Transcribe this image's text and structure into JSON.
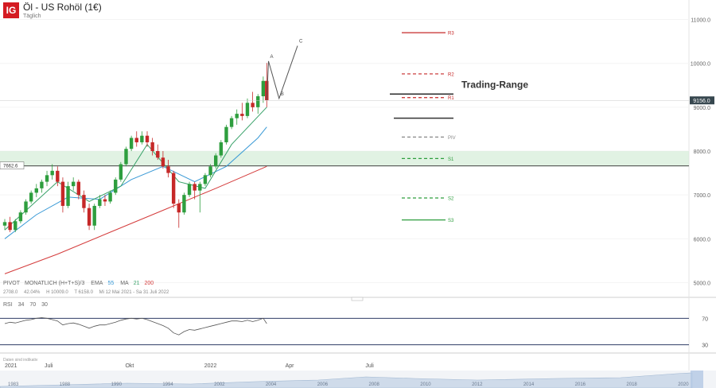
{
  "header": {
    "logo": "IG",
    "title": "Öl - US Rohöl (1€)",
    "subtitle": "Täglich"
  },
  "legend": {
    "pivot": "PIVOT",
    "pivot_params": "MONATLICH (H+T+S)/3",
    "ema_label": "EMA",
    "ema_value": "55",
    "ma_label": "MA",
    "ma_21": "21",
    "ma_200": "200",
    "info_1": "2708.0",
    "info_2": "42.04%",
    "info_3": "H 10009.0",
    "info_4": "T 6158.0",
    "info_5": "Mi 12 Mai 2021 - Sa 31 Juli 2022"
  },
  "rsi": {
    "label": "RSI",
    "period": "34",
    "upper": "70",
    "lower": "30",
    "axis_labels": [
      "70",
      "30"
    ]
  },
  "disclaimer": "Daten sind indikativ",
  "colors": {
    "up": "#2e9e3e",
    "down": "#c62828",
    "ema55": "#3a9ad6",
    "ma21": "#38a169",
    "ma200": "#d43b3b",
    "zone": "#d7eed9",
    "price_tag": "#37474f"
  },
  "chart_data": {
    "type": "candlestick",
    "title": "Öl - US Rohöl (1€)",
    "subtitle": "Täglich",
    "ylim": [
      4700,
      11300
    ],
    "y_ticks": [
      5000,
      6000,
      7000,
      8000,
      9000,
      10000,
      11000
    ],
    "y_tick_labels": [
      "5000.0",
      "6000.0",
      "7000.0",
      "8000.0",
      "9000.0",
      "10000.0",
      "11000.0"
    ],
    "x_labels": [
      {
        "label": "2021",
        "date": "2021-05-12"
      },
      {
        "label": "Juli",
        "date": "2021-07-01"
      },
      {
        "label": "Okt",
        "date": "2021-10-01"
      },
      {
        "label": "2022",
        "date": "2022-01-01"
      },
      {
        "label": "Apr",
        "date": "2022-04-01"
      },
      {
        "label": "Juli",
        "date": "2022-07-01"
      }
    ],
    "x_range": [
      "2021-05-12",
      "2022-07-31"
    ],
    "last_price": 9156.0,
    "last_price_label": "9156.0",
    "horizontal_level": 7662.6,
    "horizontal_level_label": "7662.6",
    "support_zone": [
      7650,
      8000
    ],
    "pivots": [
      {
        "label": "R3",
        "value": 10700,
        "style": "solid",
        "color": "#c62828"
      },
      {
        "label": "R2",
        "value": 9760,
        "style": "dashed",
        "color": "#c62828"
      },
      {
        "label": "R1",
        "value": 9220,
        "style": "dashed",
        "color": "#c62828"
      },
      {
        "label": "PIV",
        "value": 8320,
        "style": "dashed",
        "color": "#888888"
      },
      {
        "label": "S1",
        "value": 7830,
        "style": "dashed",
        "color": "#2e9e3e"
      },
      {
        "label": "S2",
        "value": 6930,
        "style": "dashed",
        "color": "#2e9e3e"
      },
      {
        "label": "S3",
        "value": 6430,
        "style": "solid",
        "color": "#2e9e3e"
      }
    ],
    "trading_range": {
      "label": "Trading-Range",
      "top": 9300,
      "bottom": 8750
    },
    "wave_path": [
      {
        "label": "A",
        "date": "2022-03-08",
        "value": 10050
      },
      {
        "label": "B",
        "date": "2022-03-20",
        "value": 9200
      },
      {
        "label": "C",
        "date": "2022-04-10",
        "value": 10400
      }
    ],
    "candles": [
      {
        "date": "2021-05-12",
        "o": 6300,
        "h": 6450,
        "l": 6200,
        "c": 6380
      },
      {
        "date": "2021-05-18",
        "o": 6380,
        "h": 6500,
        "l": 6150,
        "c": 6200
      },
      {
        "date": "2021-05-24",
        "o": 6200,
        "h": 6450,
        "l": 6150,
        "c": 6400
      },
      {
        "date": "2021-05-30",
        "o": 6400,
        "h": 6650,
        "l": 6350,
        "c": 6600
      },
      {
        "date": "2021-06-05",
        "o": 6600,
        "h": 6900,
        "l": 6550,
        "c": 6850
      },
      {
        "date": "2021-06-11",
        "o": 6850,
        "h": 7100,
        "l": 6800,
        "c": 7050
      },
      {
        "date": "2021-06-17",
        "o": 7050,
        "h": 7250,
        "l": 6950,
        "c": 7150
      },
      {
        "date": "2021-06-23",
        "o": 7150,
        "h": 7350,
        "l": 7050,
        "c": 7300
      },
      {
        "date": "2021-06-29",
        "o": 7300,
        "h": 7550,
        "l": 7200,
        "c": 7450
      },
      {
        "date": "2021-07-05",
        "o": 7450,
        "h": 7700,
        "l": 7350,
        "c": 7550
      },
      {
        "date": "2021-07-11",
        "o": 7550,
        "h": 7650,
        "l": 7200,
        "c": 7300
      },
      {
        "date": "2021-07-17",
        "o": 7300,
        "h": 7400,
        "l": 6600,
        "c": 6750
      },
      {
        "date": "2021-07-23",
        "o": 6750,
        "h": 7300,
        "l": 6700,
        "c": 7200
      },
      {
        "date": "2021-07-29",
        "o": 7200,
        "h": 7400,
        "l": 7100,
        "c": 7300
      },
      {
        "date": "2021-08-04",
        "o": 7300,
        "h": 7350,
        "l": 6900,
        "c": 7000
      },
      {
        "date": "2021-08-10",
        "o": 7000,
        "h": 7100,
        "l": 6600,
        "c": 6700
      },
      {
        "date": "2021-08-16",
        "o": 6700,
        "h": 6800,
        "l": 6200,
        "c": 6300
      },
      {
        "date": "2021-08-22",
        "o": 6300,
        "h": 6800,
        "l": 6200,
        "c": 6750
      },
      {
        "date": "2021-08-28",
        "o": 6750,
        "h": 7000,
        "l": 6700,
        "c": 6900
      },
      {
        "date": "2021-09-03",
        "o": 6900,
        "h": 7000,
        "l": 6750,
        "c": 6850
      },
      {
        "date": "2021-09-09",
        "o": 6850,
        "h": 7100,
        "l": 6800,
        "c": 7050
      },
      {
        "date": "2021-09-15",
        "o": 7050,
        "h": 7400,
        "l": 7000,
        "c": 7350
      },
      {
        "date": "2021-09-21",
        "o": 7350,
        "h": 7750,
        "l": 7300,
        "c": 7700
      },
      {
        "date": "2021-09-27",
        "o": 7700,
        "h": 8100,
        "l": 7650,
        "c": 8050
      },
      {
        "date": "2021-10-03",
        "o": 8050,
        "h": 8350,
        "l": 8000,
        "c": 8300
      },
      {
        "date": "2021-10-09",
        "o": 8300,
        "h": 8450,
        "l": 8100,
        "c": 8200
      },
      {
        "date": "2021-10-15",
        "o": 8200,
        "h": 8450,
        "l": 8150,
        "c": 8350
      },
      {
        "date": "2021-10-21",
        "o": 8350,
        "h": 8450,
        "l": 8100,
        "c": 8200
      },
      {
        "date": "2021-10-27",
        "o": 8200,
        "h": 8300,
        "l": 7900,
        "c": 8000
      },
      {
        "date": "2021-11-02",
        "o": 8000,
        "h": 8150,
        "l": 7800,
        "c": 7850
      },
      {
        "date": "2021-11-08",
        "o": 7850,
        "h": 8000,
        "l": 7600,
        "c": 7650
      },
      {
        "date": "2021-11-14",
        "o": 7650,
        "h": 7800,
        "l": 7400,
        "c": 7500
      },
      {
        "date": "2021-11-20",
        "o": 7500,
        "h": 7550,
        "l": 6700,
        "c": 6800
      },
      {
        "date": "2021-11-26",
        "o": 6800,
        "h": 6900,
        "l": 6250,
        "c": 6600
      },
      {
        "date": "2021-12-02",
        "o": 6600,
        "h": 7050,
        "l": 6550,
        "c": 7000
      },
      {
        "date": "2021-12-08",
        "o": 7000,
        "h": 7300,
        "l": 6950,
        "c": 7250
      },
      {
        "date": "2021-12-14",
        "o": 7250,
        "h": 7300,
        "l": 6900,
        "c": 7100
      },
      {
        "date": "2021-12-20",
        "o": 7100,
        "h": 7300,
        "l": 6600,
        "c": 7250
      },
      {
        "date": "2021-12-26",
        "o": 7250,
        "h": 7500,
        "l": 7200,
        "c": 7450
      },
      {
        "date": "2022-01-01",
        "o": 7450,
        "h": 7700,
        "l": 7400,
        "c": 7650
      },
      {
        "date": "2022-01-07",
        "o": 7650,
        "h": 7950,
        "l": 7600,
        "c": 7900
      },
      {
        "date": "2022-01-13",
        "o": 7900,
        "h": 8250,
        "l": 7850,
        "c": 8200
      },
      {
        "date": "2022-01-19",
        "o": 8200,
        "h": 8600,
        "l": 8150,
        "c": 8550
      },
      {
        "date": "2022-01-25",
        "o": 8550,
        "h": 8800,
        "l": 8500,
        "c": 8750
      },
      {
        "date": "2022-01-31",
        "o": 8750,
        "h": 8950,
        "l": 8600,
        "c": 8850
      },
      {
        "date": "2022-02-06",
        "o": 8850,
        "h": 9100,
        "l": 8700,
        "c": 8800
      },
      {
        "date": "2022-02-12",
        "o": 8800,
        "h": 9200,
        "l": 8750,
        "c": 9100
      },
      {
        "date": "2022-02-18",
        "o": 9100,
        "h": 9350,
        "l": 8900,
        "c": 9000
      },
      {
        "date": "2022-02-24",
        "o": 9000,
        "h": 9300,
        "l": 8850,
        "c": 9250
      },
      {
        "date": "2022-03-02",
        "o": 9250,
        "h": 9700,
        "l": 9100,
        "c": 9600
      },
      {
        "date": "2022-03-06",
        "o": 9600,
        "h": 10009,
        "l": 9000,
        "c": 9156
      }
    ],
    "ema55": [
      {
        "date": "2021-05-12",
        "v": 6000
      },
      {
        "date": "2021-06-17",
        "v": 6550
      },
      {
        "date": "2021-07-23",
        "v": 6950
      },
      {
        "date": "2021-08-28",
        "v": 6900
      },
      {
        "date": "2021-10-03",
        "v": 7350
      },
      {
        "date": "2021-11-08",
        "v": 7650
      },
      {
        "date": "2021-12-14",
        "v": 7300
      },
      {
        "date": "2022-01-19",
        "v": 7650
      },
      {
        "date": "2022-02-24",
        "v": 8300
      },
      {
        "date": "2022-03-06",
        "v": 8550
      }
    ],
    "ma21": [
      {
        "date": "2021-05-12",
        "v": 6200
      },
      {
        "date": "2021-06-11",
        "v": 6750
      },
      {
        "date": "2021-07-11",
        "v": 7300
      },
      {
        "date": "2021-08-16",
        "v": 6850
      },
      {
        "date": "2021-09-21",
        "v": 7200
      },
      {
        "date": "2021-10-21",
        "v": 8150
      },
      {
        "date": "2021-11-26",
        "v": 7300
      },
      {
        "date": "2021-12-26",
        "v": 7150
      },
      {
        "date": "2022-01-25",
        "v": 8150
      },
      {
        "date": "2022-03-06",
        "v": 9000
      }
    ],
    "ma200": [
      {
        "date": "2021-05-12",
        "v": 5200
      },
      {
        "date": "2021-07-11",
        "v": 5650
      },
      {
        "date": "2021-09-09",
        "v": 6150
      },
      {
        "date": "2021-11-08",
        "v": 6650
      },
      {
        "date": "2022-01-07",
        "v": 7150
      },
      {
        "date": "2022-03-06",
        "v": 7650
      }
    ],
    "rsi": [
      62,
      64,
      63,
      65,
      67,
      68,
      70,
      71,
      70,
      68,
      66,
      60,
      62,
      63,
      61,
      58,
      55,
      58,
      60,
      60,
      62,
      64,
      67,
      69,
      70,
      69,
      70,
      68,
      65,
      62,
      59,
      55,
      48,
      45,
      50,
      53,
      52,
      54,
      56,
      58,
      60,
      62,
      64,
      66,
      66,
      65,
      67,
      65,
      67,
      70,
      62
    ],
    "rsi_ylim": [
      20,
      80
    ],
    "navigator_labels": [
      "1983",
      "1988",
      "1990",
      "1994",
      "2002",
      "2004",
      "2006",
      "2008",
      "2010",
      "2012",
      "2014",
      "2016",
      "2018",
      "2020"
    ]
  }
}
